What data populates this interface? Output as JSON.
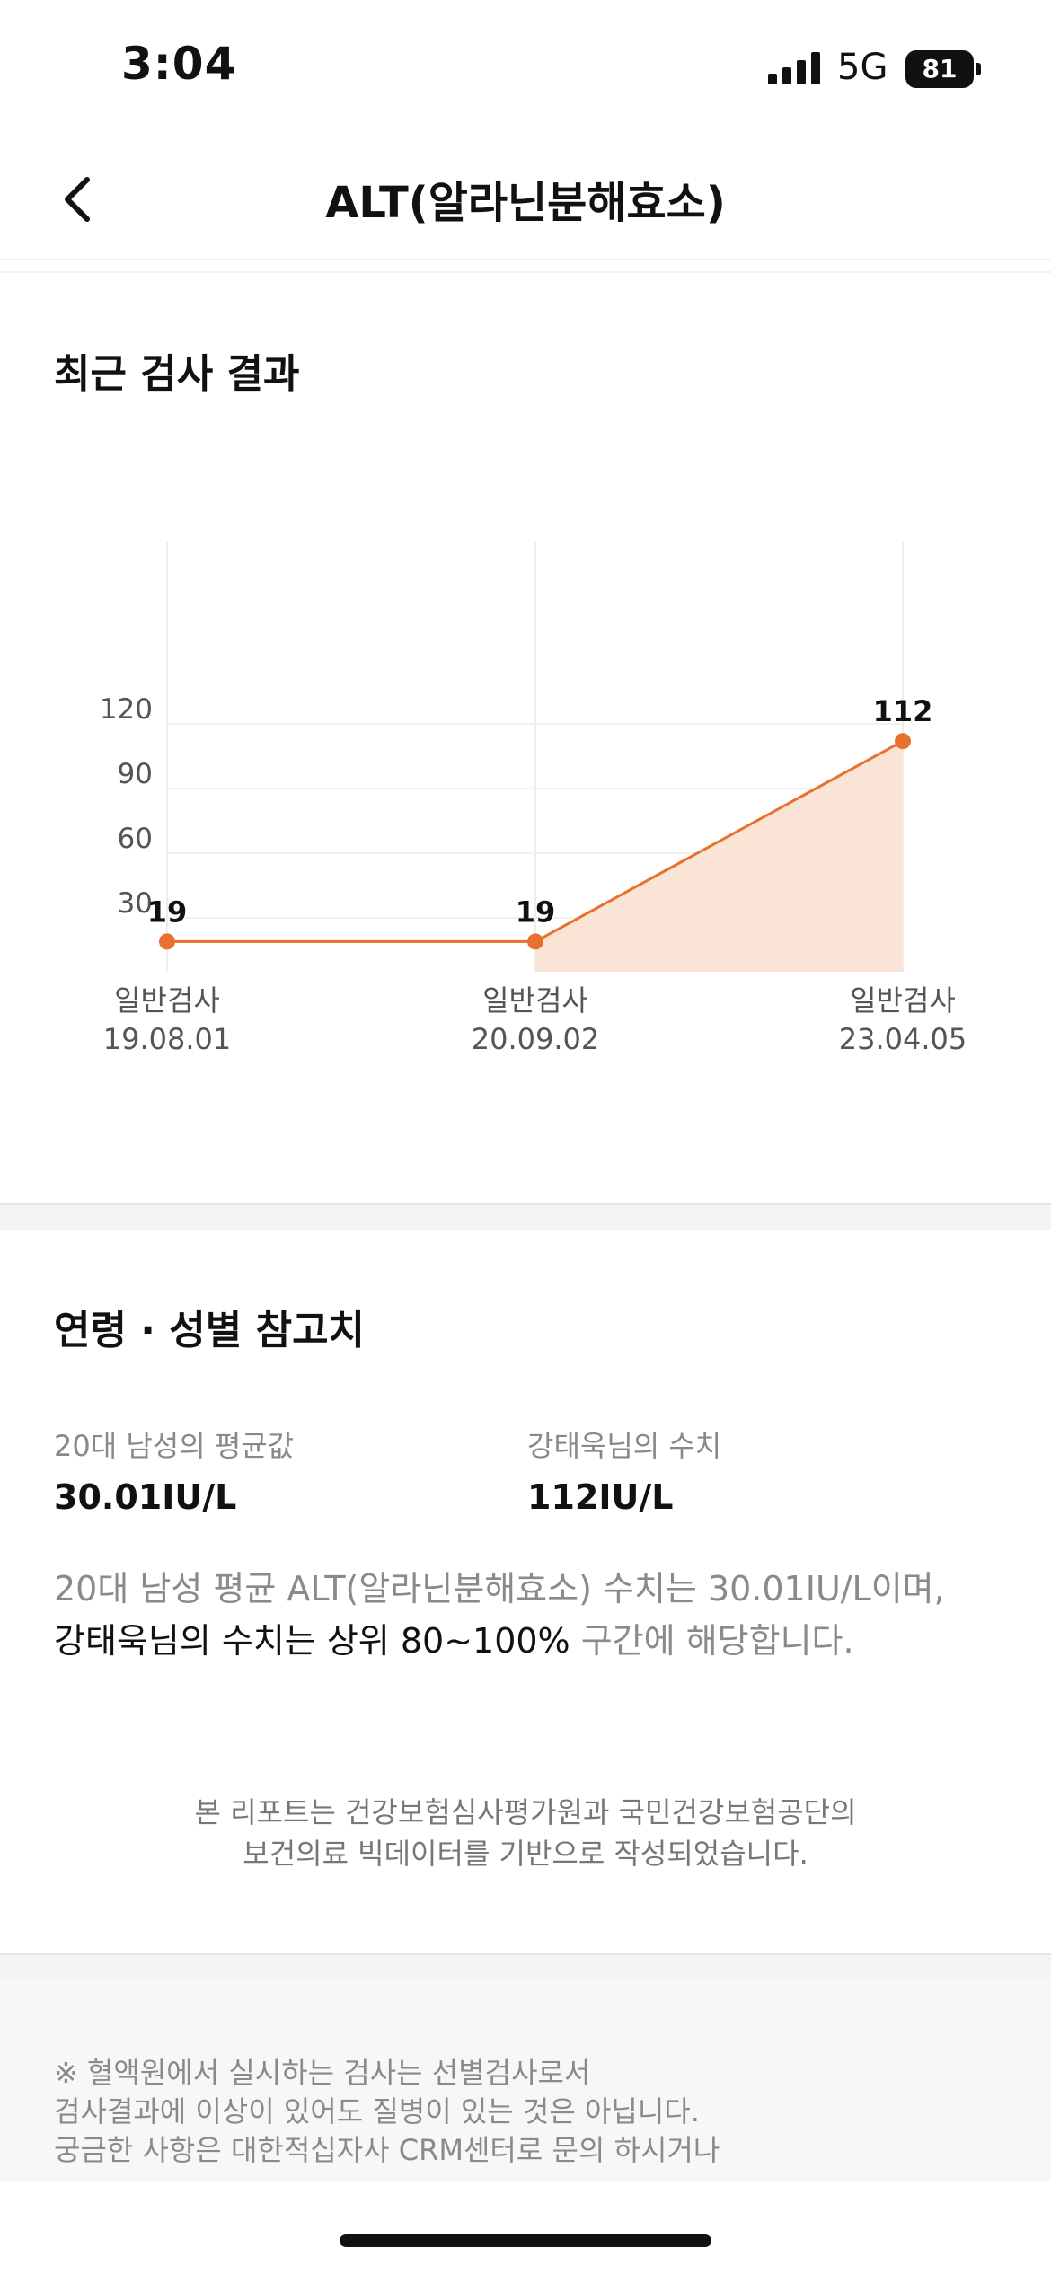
{
  "status_bar": {
    "time": "3:04",
    "network": "5G",
    "battery": "81"
  },
  "header": {
    "title": "ALT(알라닌분해효소)",
    "back_icon": "chevron-left-icon"
  },
  "recent_results": {
    "title": "최근 검사 결과"
  },
  "chart_data": {
    "type": "area",
    "x": [
      {
        "type": "일반검사",
        "date": "19.08.01"
      },
      {
        "type": "일반검사",
        "date": "20.09.02"
      },
      {
        "type": "일반검사",
        "date": "23.04.05"
      }
    ],
    "values": [
      19,
      19,
      112
    ],
    "data_labels": [
      "19",
      "19",
      "112"
    ],
    "y_ticks": [
      30,
      60,
      90,
      120
    ],
    "y_tick_labels": [
      "30",
      "60",
      "90",
      "120"
    ],
    "ylim": [
      0,
      140
    ],
    "grid": true,
    "colors": {
      "line": "#e8712f",
      "fill": "#f9e4d6",
      "grid": "#eeeeee"
    }
  },
  "reference": {
    "title": "연령 · 성별 참고치",
    "avg_label": "20대 남성의 평균값",
    "avg_value": "30.01IU/L",
    "user_label": "강태욱님의 수치",
    "user_value": "112IU/L",
    "summary_line1": "20대 남성 평균 ALT(알라닌분해효소) 수치는 30.01IU/L이며,",
    "summary_line2_strong": "강태욱님의 수치는 상위 80~100%",
    "summary_line2_rest": " 구간에 해당합니다.",
    "source_line1": "본 리포트는 건강보험심사평가원과 국민건강보험공단의",
    "source_line2": "보건의료 빅데이터를 기반으로 작성되었습니다."
  },
  "notice": {
    "line1": "※ 혈액원에서 실시하는 검사는 선별검사로서",
    "line2": "검사결과에 이상이 있어도 질병이 있는 것은 아닙니다.",
    "line3": "궁금한 사항은 대한적십자사 CRM센터로 문의 하시거나"
  }
}
